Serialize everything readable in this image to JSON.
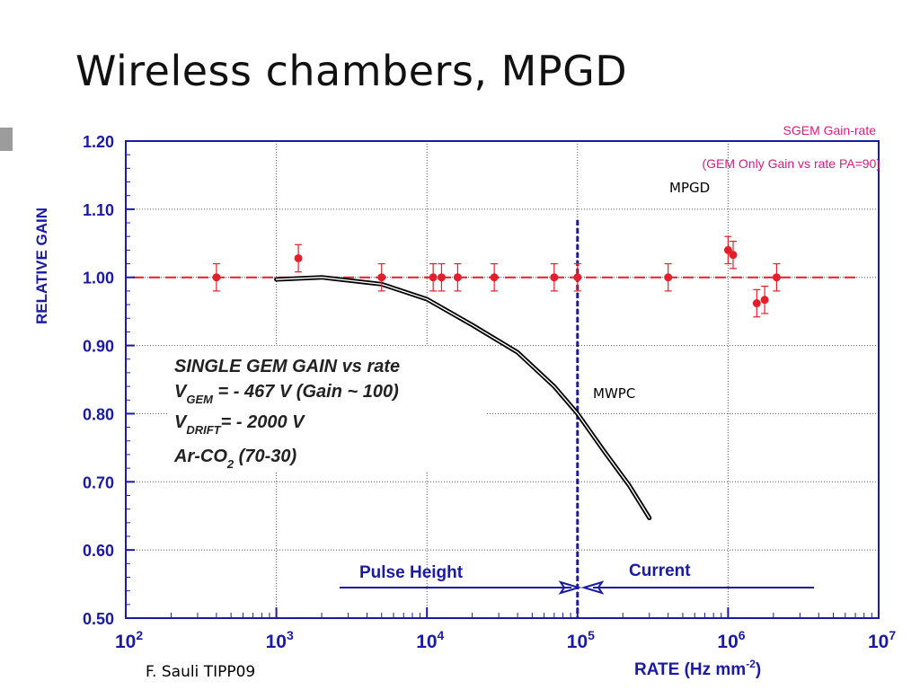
{
  "slide": {
    "title": "Wireless chambers, MPGD",
    "credit": "F. Sauli TIPP09"
  },
  "colors": {
    "axis": "#1a1aa6",
    "points": "#e3202a",
    "reference_line": "#e3202a",
    "divider": "#1a1aa6",
    "curve": "#000000",
    "legend_text": "#d81b7e",
    "side_marker": "#9c9c9c"
  },
  "chart_data": {
    "type": "scatter",
    "title": "SGEM Gain-rate",
    "subtitle": "(GEM Only Gain vs rate PA=90)",
    "xlabel": "RATE (Hz mm",
    "xlabel_exponent": "-2",
    "xlabel_suffix": ")",
    "ylabel": "RELATIVE GAIN",
    "xscale": "log",
    "xlim": [
      100,
      10000000
    ],
    "ylim": [
      0.5,
      1.2
    ],
    "grid": true,
    "x_ticks": [
      {
        "base": "10",
        "exp": "2",
        "value": 100
      },
      {
        "base": "10",
        "exp": "3",
        "value": 1000
      },
      {
        "base": "10",
        "exp": "4",
        "value": 10000
      },
      {
        "base": "10",
        "exp": "5",
        "value": 100000
      },
      {
        "base": "10",
        "exp": "6",
        "value": 1000000
      },
      {
        "base": "10",
        "exp": "7",
        "value": 10000000
      }
    ],
    "y_ticks": [
      "0.50",
      "0.60",
      "0.70",
      "0.80",
      "0.90",
      "1.00",
      "1.10",
      "1.20"
    ],
    "series": [
      {
        "marker": "circle",
        "points": [
          {
            "x": 400,
            "y": 1.0,
            "err": 0.02
          },
          {
            "x": 1400,
            "y": 1.028,
            "err": 0.02
          },
          {
            "x": 5000,
            "y": 1.0,
            "err": 0.02
          },
          {
            "x": 11000,
            "y": 1.0,
            "err": 0.02
          },
          {
            "x": 12500,
            "y": 1.0,
            "err": 0.02
          },
          {
            "x": 16000,
            "y": 1.0,
            "err": 0.02
          },
          {
            "x": 28000,
            "y": 1.0,
            "err": 0.02
          },
          {
            "x": 70000,
            "y": 1.0,
            "err": 0.02
          },
          {
            "x": 100000,
            "y": 1.0,
            "err": 0.02
          },
          {
            "x": 400000,
            "y": 1.0,
            "err": 0.02
          },
          {
            "x": 1000000,
            "y": 1.04,
            "err": 0.02
          },
          {
            "x": 1080000,
            "y": 1.033,
            "err": 0.02
          },
          {
            "x": 1550000,
            "y": 0.962,
            "err": 0.02
          },
          {
            "x": 1750000,
            "y": 0.967,
            "err": 0.02
          },
          {
            "x": 2100000,
            "y": 1.0,
            "err": 0.02
          }
        ]
      }
    ],
    "reference_line": {
      "y": 1.0,
      "x_range": [
        100,
        5000000
      ]
    },
    "mwpc_curve": [
      {
        "x": 1000,
        "y": 0.997
      },
      {
        "x": 2000,
        "y": 1.0
      },
      {
        "x": 5000,
        "y": 0.99
      },
      {
        "x": 10000,
        "y": 0.968
      },
      {
        "x": 20000,
        "y": 0.93
      },
      {
        "x": 40000,
        "y": 0.89
      },
      {
        "x": 70000,
        "y": 0.84
      },
      {
        "x": 100000,
        "y": 0.8
      },
      {
        "x": 150000,
        "y": 0.745
      },
      {
        "x": 220000,
        "y": 0.695
      },
      {
        "x": 300000,
        "y": 0.647
      }
    ],
    "divider_x": 100000,
    "annotations": {
      "mpgd": "MPGD",
      "mwpc": "MWPC",
      "pulse_height": "Pulse Height",
      "current": "Current"
    },
    "info_box": {
      "line1": "SINGLE GEM GAIN vs rate",
      "line2_main": "V",
      "line2_sub": "GEM",
      "line2_rest": " = - 467 V  (Gain ~ 100)",
      "line3_main": "V",
      "line3_sub": "DRIFT",
      "line3_rest": "= - 2000 V",
      "line4_main": "Ar-CO",
      "line4_sub": "2",
      "line4_rest": " (70-30)"
    }
  }
}
